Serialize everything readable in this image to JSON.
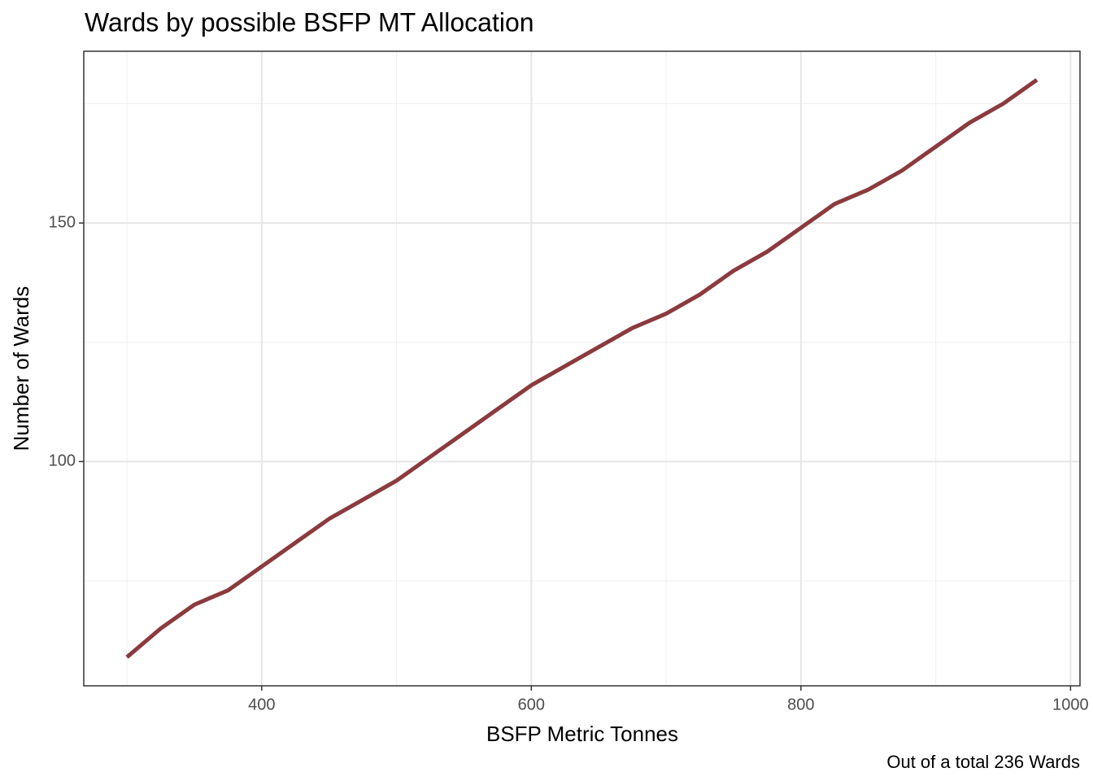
{
  "chart_data": {
    "type": "line",
    "title": "Wards by possible BSFP MT Allocation",
    "x_label": "BSFP Metric Tonnes",
    "y_label": "Number of Wards",
    "caption": "Out of a total 236 Wards",
    "x": [
      300,
      325,
      350,
      375,
      400,
      425,
      450,
      475,
      500,
      525,
      550,
      575,
      600,
      625,
      650,
      675,
      700,
      725,
      750,
      775,
      800,
      825,
      850,
      875,
      900,
      925,
      950,
      975
    ],
    "series": [
      {
        "name": "Wards",
        "color": "#8b3a3e",
        "values": [
          59,
          65,
          70,
          73,
          78,
          83,
          88,
          92,
          96,
          101,
          106,
          111,
          116,
          120,
          124,
          128,
          131,
          135,
          140,
          144,
          149,
          154,
          157,
          161,
          166,
          171,
          175,
          180
        ]
      }
    ],
    "xlim": [
      268,
      1007
    ],
    "xticks": [
      400,
      600,
      800,
      1000
    ],
    "x_minor_grid": [
      300,
      500,
      700,
      900
    ],
    "ylim": [
      53,
      186
    ],
    "yticks": [
      100,
      150
    ],
    "y_minor_grid": [
      75,
      125,
      175
    ],
    "grid": true
  }
}
